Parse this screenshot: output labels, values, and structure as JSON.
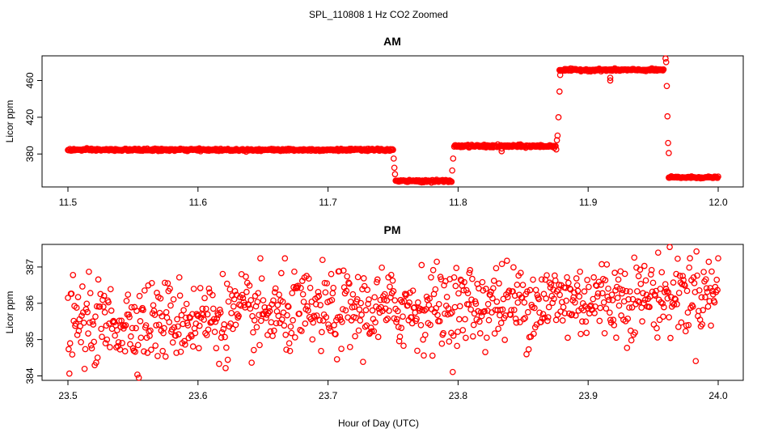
{
  "figure_title": "SPL_110808  1 Hz CO2 Zoomed",
  "xlabel_shared": "Hour of Day (UTC)",
  "colors": {
    "points": "#ff0000",
    "axes": "#000000",
    "background": "#ffffff"
  },
  "chart_data": [
    {
      "type": "scatter",
      "title": "AM",
      "xlabel": "",
      "ylabel": "Licor ppm",
      "xlim": [
        11.5,
        12.0
      ],
      "ylim": [
        345,
        486
      ],
      "xticks": [
        11.5,
        11.6,
        11.7,
        11.8,
        11.9,
        12.0
      ],
      "xtick_labels": [
        "11.5",
        "11.6",
        "11.7",
        "11.8",
        "11.9",
        "12.0"
      ],
      "yticks": [
        380,
        420,
        460
      ],
      "ytick_labels": [
        "380",
        "420",
        "460"
      ],
      "segments": [
        {
          "x_start": 11.5,
          "x_end": 11.75,
          "level": 384.5,
          "noise": 1.0
        },
        {
          "x_start": 11.752,
          "x_end": 11.795,
          "level": 350.5,
          "noise": 1.0
        },
        {
          "x_start": 11.797,
          "x_end": 11.875,
          "level": 388.5,
          "noise": 1.2
        },
        {
          "x_start": 11.878,
          "x_end": 11.958,
          "level": 471.5,
          "noise": 1.0
        },
        {
          "x_start": 11.962,
          "x_end": 12.0,
          "level": 354.5,
          "noise": 0.8
        }
      ],
      "transitions": [
        {
          "x": 11.7505,
          "y": 375
        },
        {
          "x": 11.751,
          "y": 365
        },
        {
          "x": 11.7515,
          "y": 358
        },
        {
          "x": 11.7955,
          "y": 362
        },
        {
          "x": 11.7962,
          "y": 375
        },
        {
          "x": 11.8335,
          "y": 383
        },
        {
          "x": 11.8335,
          "y": 386
        },
        {
          "x": 11.8755,
          "y": 385
        },
        {
          "x": 11.876,
          "y": 395
        },
        {
          "x": 11.8765,
          "y": 400
        },
        {
          "x": 11.8772,
          "y": 420
        },
        {
          "x": 11.878,
          "y": 448
        },
        {
          "x": 11.8785,
          "y": 466
        },
        {
          "x": 11.917,
          "y": 460
        },
        {
          "x": 11.917,
          "y": 463
        },
        {
          "x": 11.9595,
          "y": 484
        },
        {
          "x": 11.96,
          "y": 480
        },
        {
          "x": 11.9605,
          "y": 454
        },
        {
          "x": 11.961,
          "y": 421
        },
        {
          "x": 11.9615,
          "y": 392
        },
        {
          "x": 11.962,
          "y": 381
        }
      ]
    },
    {
      "type": "scatter",
      "title": "PM",
      "xlabel": "Hour of Day (UTC)",
      "ylabel": "Licor ppm",
      "xlim": [
        23.5,
        24.0
      ],
      "ylim": [
        383.9,
        387.6
      ],
      "xticks": [
        23.5,
        23.6,
        23.7,
        23.8,
        23.9,
        24.0
      ],
      "xtick_labels": [
        "23.5",
        "23.6",
        "23.7",
        "23.8",
        "23.9",
        "24.0"
      ],
      "yticks": [
        384,
        385,
        386,
        387
      ],
      "ytick_labels": [
        "384",
        "385",
        "386",
        "387"
      ],
      "trend": {
        "x_start": 23.5,
        "y_start": 385.4,
        "x_end": 24.0,
        "y_end": 386.3,
        "noise": 0.55
      },
      "n_points": 900
    }
  ]
}
